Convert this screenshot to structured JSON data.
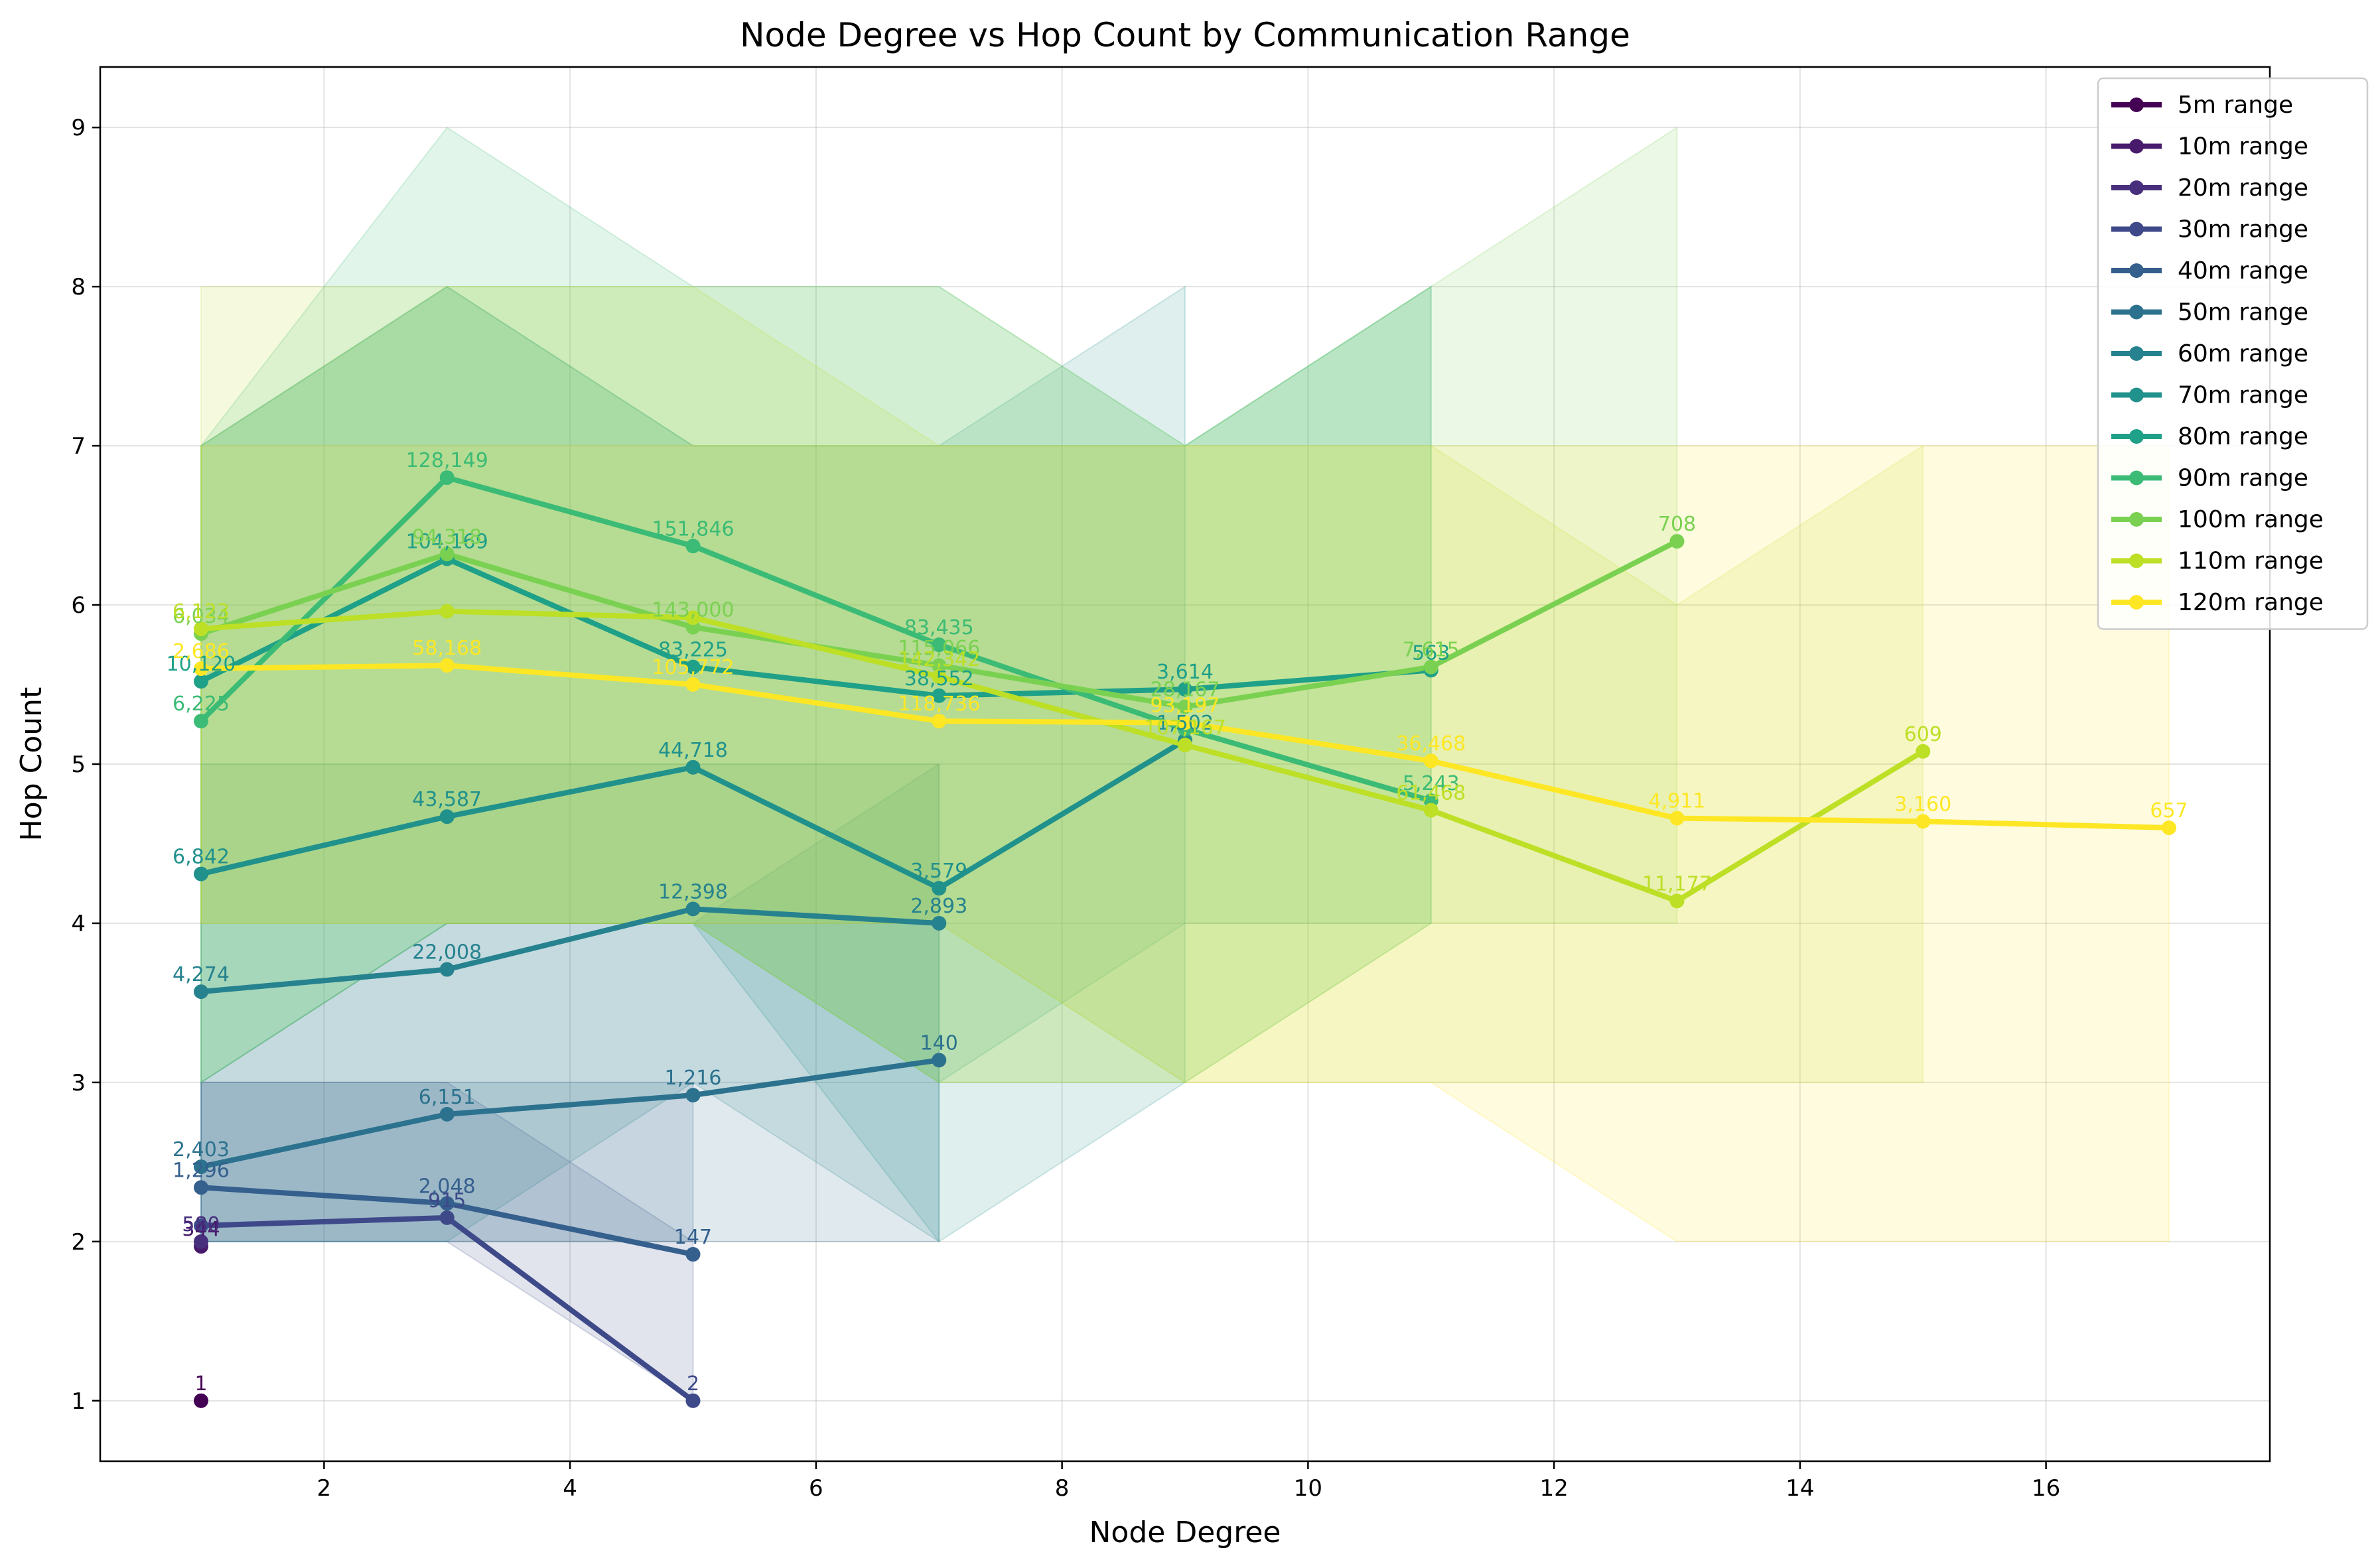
{
  "chart_data": {
    "type": "line",
    "title": "Node Degree vs Hop Count by Communication Range",
    "xlabel": "Node Degree",
    "ylabel": "Hop Count",
    "xlim": [
      0.18,
      17.82
    ],
    "ylim": [
      0.62,
      9.38
    ],
    "xticks": [
      2,
      4,
      6,
      8,
      10,
      12,
      14,
      16
    ],
    "yticks": [
      1,
      2,
      3,
      4,
      5,
      6,
      7,
      8,
      9
    ],
    "grid": true,
    "legend_position": "top-right",
    "series": [
      {
        "name": "5m range",
        "color": "#440154",
        "x": [
          1
        ],
        "y": [
          1.0
        ],
        "labels": [
          "1"
        ],
        "band_min": [
          1
        ],
        "band_max": [
          1
        ]
      },
      {
        "name": "10m range",
        "color": "#481a6c",
        "x": [
          1
        ],
        "y": [
          1.97
        ],
        "labels": [
          "344"
        ],
        "band_min": [
          1
        ],
        "band_max": [
          3
        ]
      },
      {
        "name": "20m range",
        "color": "#472f7d",
        "x": [
          1
        ],
        "y": [
          2.0
        ],
        "labels": [
          "580"
        ],
        "band_min": [
          1
        ],
        "band_max": [
          3
        ]
      },
      {
        "name": "30m range",
        "color": "#3e4989",
        "x": [
          1,
          3,
          5
        ],
        "y": [
          2.1,
          2.15,
          1.0
        ],
        "labels": [
          "",
          "915",
          "2"
        ],
        "band_min": [
          2,
          2,
          1
        ],
        "band_max": [
          3,
          3,
          2
        ]
      },
      {
        "name": "40m range",
        "color": "#355f8d",
        "x": [
          1,
          3,
          5
        ],
        "y": [
          2.34,
          2.24,
          1.92
        ],
        "labels": [
          "1,296",
          "2,048",
          "147"
        ],
        "band_min": [
          2,
          2,
          2
        ],
        "band_max": [
          3,
          3,
          3
        ]
      },
      {
        "name": "50m range",
        "color": "#2c728e",
        "x": [
          1,
          3,
          5,
          7
        ],
        "y": [
          2.47,
          2.8,
          2.92,
          3.14
        ],
        "labels": [
          "2,403",
          "6,151",
          "1,216",
          "140"
        ],
        "band_min": [
          2,
          2,
          2,
          2
        ],
        "band_max": [
          3,
          4,
          4,
          5
        ]
      },
      {
        "name": "60m range",
        "color": "#26828e",
        "x": [
          1,
          3,
          5,
          7
        ],
        "y": [
          3.57,
          3.71,
          4.09,
          4.0
        ],
        "labels": [
          "4,274",
          "22,008",
          "12,398",
          "2,893"
        ],
        "band_min": [
          2,
          2,
          3,
          2
        ],
        "band_max": [
          5,
          5,
          5,
          5
        ]
      },
      {
        "name": "70m range",
        "color": "#21918c",
        "x": [
          1,
          3,
          5,
          7,
          9
        ],
        "y": [
          4.31,
          4.67,
          4.98,
          4.22,
          5.15
        ],
        "labels": [
          "6,842",
          "43,587",
          "44,718",
          "3,579",
          "1,502"
        ],
        "band_min": [
          3,
          4,
          4,
          2,
          3
        ],
        "band_max": [
          7,
          8,
          7,
          7,
          8
        ]
      },
      {
        "name": "80m range",
        "color": "#1fa088",
        "x": [
          1,
          3,
          5,
          7,
          9,
          11
        ],
        "y": [
          5.52,
          6.29,
          5.61,
          5.43,
          5.47,
          5.59
        ],
        "labels": [
          "10,120",
          "104,169",
          "83,225",
          "38,552",
          "3,614",
          "563"
        ],
        "band_min": [
          4,
          4,
          4,
          3,
          4,
          4
        ],
        "band_max": [
          7,
          8,
          7,
          7,
          7,
          8
        ]
      },
      {
        "name": "90m range",
        "color": "#3bbb75",
        "x": [
          1,
          3,
          5,
          7,
          9,
          11
        ],
        "y": [
          5.27,
          6.8,
          6.37,
          5.75,
          5.22,
          4.77
        ],
        "labels": [
          "6,225",
          "128,149",
          "151,846",
          "83,435",
          "",
          "5,243"
        ],
        "band_min": [
          3,
          4,
          4,
          4,
          3,
          4
        ],
        "band_max": [
          7,
          9,
          8,
          8,
          7,
          8
        ]
      },
      {
        "name": "100m range",
        "color": "#7ad151",
        "x": [
          1,
          3,
          5,
          7,
          9,
          11,
          13
        ],
        "y": [
          5.82,
          6.32,
          5.86,
          5.62,
          5.36,
          5.61,
          6.4
        ],
        "labels": [
          "6,034",
          "94,318",
          "143,000",
          "115,066",
          "28,167",
          "7,615",
          "708"
        ],
        "band_min": [
          3,
          4,
          4,
          3,
          3,
          4,
          4
        ],
        "band_max": [
          7,
          8,
          8,
          8,
          7,
          8,
          9
        ]
      },
      {
        "name": "110m range",
        "color": "#bddf26",
        "x": [
          1,
          3,
          5,
          7,
          9,
          11,
          13,
          15
        ],
        "y": [
          5.85,
          5.96,
          5.92,
          5.55,
          5.12,
          4.71,
          4.14,
          5.08
        ],
        "labels": [
          "6,123",
          "",
          "",
          "142,342",
          "107,167",
          "61,468",
          "11,177",
          "609"
        ],
        "band_min": [
          4,
          4,
          4,
          3,
          3,
          3,
          3,
          3
        ],
        "band_max": [
          8,
          8,
          8,
          7,
          7,
          7,
          6,
          7
        ]
      },
      {
        "name": "120m range",
        "color": "#fde725",
        "x": [
          1,
          3,
          5,
          7,
          9,
          11,
          13,
          15,
          17
        ],
        "y": [
          5.6,
          5.62,
          5.5,
          5.27,
          5.26,
          5.02,
          4.66,
          4.64,
          4.6
        ],
        "labels": [
          "2,686",
          "58,168",
          "105,772",
          "118,736",
          "93,197",
          "36,468",
          "4,911",
          "3,160",
          "657"
        ],
        "band_min": [
          4,
          4,
          4,
          4,
          3,
          3,
          2,
          2,
          2
        ],
        "band_max": [
          7,
          7,
          7,
          7,
          7,
          7,
          7,
          7,
          7
        ]
      }
    ]
  }
}
